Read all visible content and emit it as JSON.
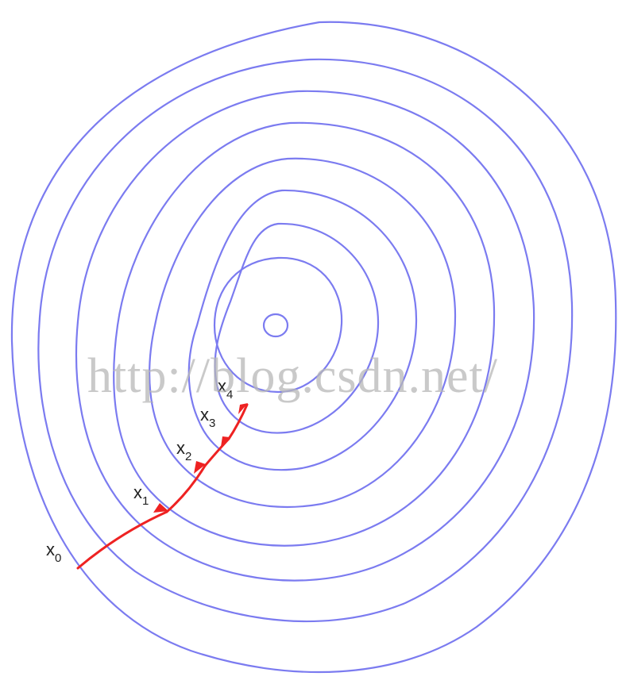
{
  "colors": {
    "contour": "#7b7bf0",
    "path": "#ee2222",
    "label": "#222222",
    "watermark": "#b8b8b8"
  },
  "labels": [
    {
      "base": "x",
      "sub": "0"
    },
    {
      "base": "x",
      "sub": "1"
    },
    {
      "base": "x",
      "sub": "2"
    },
    {
      "base": "x",
      "sub": "3"
    },
    {
      "base": "x",
      "sub": "4"
    }
  ],
  "watermark": {
    "text": "http://blog.csdn.net/"
  }
}
